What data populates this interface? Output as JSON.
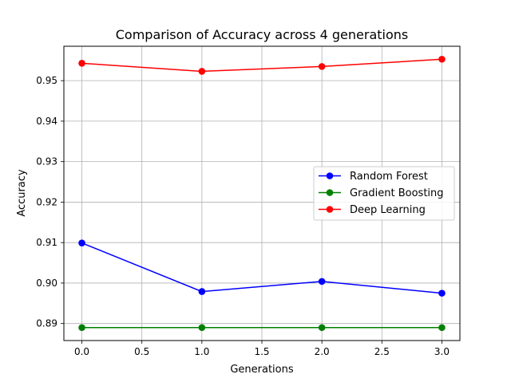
{
  "chart_data": {
    "type": "line",
    "title": "Comparison of Accuracy across 4 generations",
    "xlabel": "Generations",
    "ylabel": "Accuracy",
    "x": [
      0.0,
      1.0,
      2.0,
      3.0
    ],
    "xlim": [
      -0.15,
      3.15
    ],
    "ylim": [
      0.8858,
      0.9585
    ],
    "xticks": [
      0.0,
      0.5,
      1.0,
      1.5,
      2.0,
      2.5,
      3.0
    ],
    "xtick_labels": [
      "0.0",
      "0.5",
      "1.0",
      "1.5",
      "2.0",
      "2.5",
      "3.0"
    ],
    "yticks": [
      0.89,
      0.9,
      0.91,
      0.92,
      0.93,
      0.94,
      0.95
    ],
    "ytick_labels": [
      "0.89",
      "0.90",
      "0.91",
      "0.92",
      "0.93",
      "0.94",
      "0.95"
    ],
    "grid": true,
    "legend_position": "center-right",
    "series": [
      {
        "name": "Random Forest",
        "color": "#0000ff",
        "marker": "circle",
        "values": [
          0.9099,
          0.8979,
          0.9004,
          0.8975
        ]
      },
      {
        "name": "Gradient Boosting",
        "color": "#008000",
        "marker": "circle",
        "values": [
          0.889,
          0.889,
          0.889,
          0.889
        ]
      },
      {
        "name": "Deep Learning",
        "color": "#ff0000",
        "marker": "circle",
        "values": [
          0.9543,
          0.9523,
          0.9535,
          0.9553
        ]
      }
    ]
  }
}
